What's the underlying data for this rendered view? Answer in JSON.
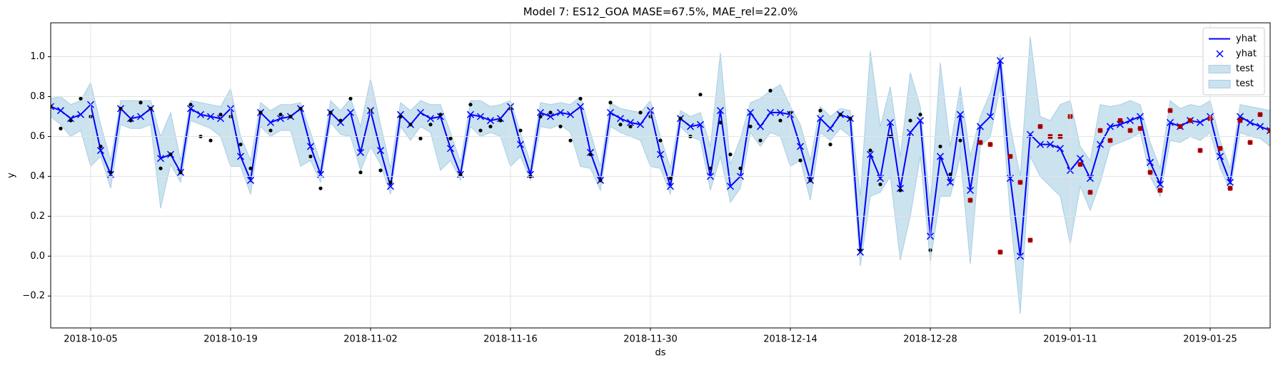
{
  "chart_data": {
    "type": "line",
    "title": "Model 7: ES12_GOA MASE=67.5%, MAE_rel=22.0%",
    "x_label": "ds",
    "y_label": "y",
    "x": [
      "2018-10-01",
      "2018-10-02",
      "2018-10-03",
      "2018-10-04",
      "2018-10-05",
      "2018-10-06",
      "2018-10-07",
      "2018-10-08",
      "2018-10-09",
      "2018-10-10",
      "2018-10-11",
      "2018-10-12",
      "2018-10-13",
      "2018-10-14",
      "2018-10-15",
      "2018-10-16",
      "2018-10-17",
      "2018-10-18",
      "2018-10-19",
      "2018-10-20",
      "2018-10-21",
      "2018-10-22",
      "2018-10-23",
      "2018-10-24",
      "2018-10-25",
      "2018-10-26",
      "2018-10-27",
      "2018-10-28",
      "2018-10-29",
      "2018-10-30",
      "2018-10-31",
      "2018-11-01",
      "2018-11-02",
      "2018-11-03",
      "2018-11-04",
      "2018-11-05",
      "2018-11-06",
      "2018-11-07",
      "2018-11-08",
      "2018-11-09",
      "2018-11-10",
      "2018-11-11",
      "2018-11-12",
      "2018-11-13",
      "2018-11-14",
      "2018-11-15",
      "2018-11-16",
      "2018-11-17",
      "2018-11-18",
      "2018-11-19",
      "2018-11-20",
      "2018-11-21",
      "2018-11-22",
      "2018-11-23",
      "2018-11-24",
      "2018-11-25",
      "2018-11-26",
      "2018-11-27",
      "2018-11-28",
      "2018-11-29",
      "2018-11-30",
      "2018-12-01",
      "2018-12-02",
      "2018-12-03",
      "2018-12-04",
      "2018-12-05",
      "2018-12-06",
      "2018-12-07",
      "2018-12-08",
      "2018-12-09",
      "2018-12-10",
      "2018-12-11",
      "2018-12-12",
      "2018-12-13",
      "2018-12-14",
      "2018-12-15",
      "2018-12-16",
      "2018-12-17",
      "2018-12-18",
      "2018-12-19",
      "2018-12-20",
      "2018-12-21",
      "2018-12-22",
      "2018-12-23",
      "2018-12-24",
      "2018-12-25",
      "2018-12-26",
      "2018-12-27",
      "2018-12-28",
      "2018-12-29",
      "2018-12-30",
      "2018-12-31",
      "2019-01-01",
      "2019-01-02",
      "2019-01-03",
      "2019-01-04",
      "2019-01-05",
      "2019-01-06",
      "2019-01-07",
      "2019-01-08",
      "2019-01-09",
      "2019-01-10",
      "2019-01-11",
      "2019-01-12",
      "2019-01-13",
      "2019-01-14",
      "2019-01-15",
      "2019-01-16",
      "2019-01-17",
      "2019-01-18",
      "2019-01-19",
      "2019-01-20",
      "2019-01-21",
      "2019-01-22",
      "2019-01-23",
      "2019-01-24",
      "2019-01-25",
      "2019-01-26",
      "2019-01-27",
      "2019-01-28",
      "2019-01-29",
      "2019-01-30",
      "2019-01-31"
    ],
    "xlim": [
      "2018-10-01",
      "2019-01-31"
    ],
    "xticks": [
      "2018-10-05",
      "2018-10-19",
      "2018-11-02",
      "2018-11-16",
      "2018-11-30",
      "2018-12-14",
      "2018-12-28",
      "2019-01-11",
      "2019-01-25"
    ],
    "ylim": [
      -0.36,
      1.17
    ],
    "yticks": [
      {
        "value": -0.2,
        "label": "−0.2"
      },
      {
        "value": 0,
        "label": "0.0"
      },
      0.2,
      0.4,
      0.6,
      0.8,
      {
        "value": 1,
        "label": "1.0"
      }
    ],
    "grid": true,
    "legend": "upper right",
    "series": [
      {
        "name": "yhat",
        "kind": "line",
        "color": "#0000ff",
        "values": [
          0.75,
          0.73,
          0.69,
          0.71,
          0.76,
          0.53,
          0.41,
          0.74,
          0.69,
          0.7,
          0.74,
          0.49,
          0.51,
          0.42,
          0.74,
          0.71,
          0.7,
          0.69,
          0.74,
          0.5,
          0.38,
          0.72,
          0.67,
          0.69,
          0.7,
          0.74,
          0.55,
          0.41,
          0.72,
          0.67,
          0.72,
          0.52,
          0.73,
          0.53,
          0.35,
          0.71,
          0.66,
          0.72,
          0.69,
          0.7,
          0.54,
          0.41,
          0.71,
          0.7,
          0.68,
          0.69,
          0.75,
          0.56,
          0.41,
          0.72,
          0.7,
          0.72,
          0.71,
          0.75,
          0.52,
          0.38,
          0.72,
          0.69,
          0.67,
          0.66,
          0.73,
          0.51,
          0.35,
          0.69,
          0.65,
          0.66,
          0.4,
          0.73,
          0.35,
          0.4,
          0.72,
          0.65,
          0.72,
          0.72,
          0.71,
          0.55,
          0.38,
          0.69,
          0.64,
          0.71,
          0.69,
          0.02,
          0.51,
          0.39,
          0.67,
          0.34,
          0.62,
          0.68,
          0.1,
          0.5,
          0.37,
          0.71,
          0.33,
          0.65,
          0.7,
          0.98,
          0.39,
          0.0,
          0.61,
          0.56,
          0.56,
          0.54,
          0.43,
          0.49,
          0.39,
          0.56,
          0.65,
          0.66,
          0.68,
          0.7,
          0.47,
          0.36,
          0.67,
          0.65,
          0.68,
          0.67,
          0.7,
          0.5,
          0.37,
          0.7,
          0.67,
          0.65,
          0.63
        ]
      },
      {
        "name": "yhat",
        "kind": "marker",
        "color": "#0000ff",
        "values": [
          0.75,
          0.73,
          0.69,
          0.71,
          0.76,
          0.53,
          0.41,
          0.74,
          0.69,
          0.7,
          0.74,
          0.49,
          0.51,
          0.42,
          0.74,
          0.71,
          0.7,
          0.69,
          0.74,
          0.5,
          0.38,
          0.72,
          0.67,
          0.69,
          0.7,
          0.74,
          0.55,
          0.41,
          0.72,
          0.67,
          0.72,
          0.52,
          0.73,
          0.53,
          0.35,
          0.71,
          0.66,
          0.72,
          0.69,
          0.7,
          0.54,
          0.41,
          0.71,
          0.7,
          0.68,
          0.69,
          0.75,
          0.56,
          0.41,
          0.72,
          0.7,
          0.72,
          0.71,
          0.75,
          0.52,
          0.38,
          0.72,
          0.69,
          0.67,
          0.66,
          0.73,
          0.51,
          0.35,
          0.69,
          0.65,
          0.66,
          0.4,
          0.73,
          0.35,
          0.4,
          0.72,
          0.65,
          0.72,
          0.72,
          0.71,
          0.55,
          0.38,
          0.69,
          0.64,
          0.71,
          0.69,
          0.02,
          0.51,
          0.39,
          0.67,
          0.34,
          0.62,
          0.68,
          0.1,
          0.5,
          0.37,
          0.71,
          0.33,
          0.65,
          0.7,
          0.98,
          0.39,
          0.0,
          0.61,
          0.56,
          0.56,
          0.54,
          0.43,
          0.49,
          0.39,
          0.56,
          0.65,
          0.66,
          0.68,
          0.7,
          0.47,
          0.36,
          0.67,
          0.65,
          0.68,
          0.67,
          0.7,
          0.5,
          0.37,
          0.7,
          0.67,
          0.65,
          0.63
        ]
      },
      {
        "name": "test",
        "kind": "band",
        "color": "#a9cfe4",
        "upper": [
          0.79,
          0.8,
          0.76,
          0.78,
          0.87,
          0.66,
          0.48,
          0.78,
          0.78,
          0.78,
          0.78,
          0.6,
          0.72,
          0.48,
          0.78,
          0.77,
          0.76,
          0.75,
          0.84,
          0.6,
          0.48,
          0.77,
          0.73,
          0.76,
          0.76,
          0.77,
          0.62,
          0.47,
          0.78,
          0.73,
          0.79,
          0.65,
          0.89,
          0.66,
          0.44,
          0.77,
          0.73,
          0.78,
          0.76,
          0.76,
          0.62,
          0.47,
          0.78,
          0.78,
          0.75,
          0.76,
          0.78,
          0.62,
          0.47,
          0.77,
          0.76,
          0.77,
          0.76,
          0.8,
          0.62,
          0.45,
          0.77,
          0.74,
          0.73,
          0.72,
          0.78,
          0.6,
          0.44,
          0.73,
          0.7,
          0.72,
          0.55,
          1.02,
          0.46,
          0.59,
          0.77,
          0.79,
          0.83,
          0.86,
          0.75,
          0.66,
          0.48,
          0.75,
          0.7,
          0.74,
          0.73,
          0.3,
          1.03,
          0.65,
          0.85,
          0.5,
          0.92,
          0.75,
          0.25,
          0.97,
          0.55,
          0.85,
          null,
          null,
          null,
          null,
          null,
          null,
          null,
          null,
          null,
          null,
          null,
          null,
          null,
          null,
          null,
          null,
          null,
          null,
          null,
          null,
          null,
          null,
          null,
          null,
          null,
          null,
          null,
          null,
          null,
          null,
          null
        ],
        "lower": [
          0.7,
          0.66,
          0.6,
          0.63,
          0.45,
          0.5,
          0.34,
          0.66,
          0.64,
          0.64,
          0.66,
          0.24,
          0.46,
          0.37,
          0.68,
          0.66,
          0.64,
          0.6,
          0.45,
          0.45,
          0.31,
          0.65,
          0.6,
          0.63,
          0.63,
          0.45,
          0.48,
          0.37,
          0.67,
          0.61,
          0.6,
          0.43,
          0.55,
          0.46,
          0.31,
          0.65,
          0.58,
          0.65,
          0.62,
          0.43,
          0.48,
          0.38,
          0.65,
          0.6,
          0.62,
          0.6,
          0.45,
          0.5,
          0.38,
          0.65,
          0.64,
          0.66,
          0.62,
          0.45,
          0.44,
          0.33,
          0.65,
          0.62,
          0.6,
          0.58,
          0.45,
          0.44,
          0.31,
          0.65,
          0.6,
          0.58,
          0.33,
          0.5,
          0.27,
          0.34,
          0.62,
          0.55,
          0.62,
          0.6,
          0.45,
          0.48,
          0.28,
          0.62,
          0.58,
          0.64,
          0.6,
          -0.05,
          0.3,
          0.32,
          0.4,
          -0.02,
          0.2,
          0.5,
          -0.03,
          0.3,
          0.3,
          0.5,
          null,
          null,
          null,
          null,
          null,
          null,
          null,
          null,
          null,
          null,
          null,
          null,
          null,
          null,
          null,
          null,
          null,
          null,
          null,
          null,
          null,
          null,
          null,
          null,
          null,
          null,
          null,
          null,
          null,
          null,
          null
        ]
      },
      {
        "name": "test",
        "kind": "band",
        "color": "#a9cfe4",
        "upper": [
          null,
          null,
          null,
          null,
          null,
          null,
          null,
          null,
          null,
          null,
          null,
          null,
          null,
          null,
          null,
          null,
          null,
          null,
          null,
          null,
          null,
          null,
          null,
          null,
          null,
          null,
          null,
          null,
          null,
          null,
          null,
          null,
          null,
          null,
          null,
          null,
          null,
          null,
          null,
          null,
          null,
          null,
          null,
          null,
          null,
          null,
          null,
          null,
          null,
          null,
          null,
          null,
          null,
          null,
          null,
          null,
          null,
          null,
          null,
          null,
          null,
          null,
          null,
          null,
          null,
          null,
          null,
          null,
          null,
          null,
          null,
          null,
          null,
          null,
          null,
          null,
          null,
          null,
          null,
          null,
          null,
          null,
          null,
          null,
          null,
          null,
          null,
          null,
          null,
          null,
          null,
          0.85,
          0.5,
          0.7,
          0.82,
          1.01,
          0.65,
          0.4,
          1.1,
          0.7,
          0.68,
          0.76,
          0.78,
          0.55,
          0.48,
          0.76,
          0.75,
          0.76,
          0.78,
          0.76,
          0.57,
          0.44,
          0.78,
          0.74,
          0.76,
          0.75,
          0.78,
          0.58,
          0.44,
          0.76,
          0.75,
          0.74,
          0.73
        ],
        "lower": [
          null,
          null,
          null,
          null,
          null,
          null,
          null,
          null,
          null,
          null,
          null,
          null,
          null,
          null,
          null,
          null,
          null,
          null,
          null,
          null,
          null,
          null,
          null,
          null,
          null,
          null,
          null,
          null,
          null,
          null,
          null,
          null,
          null,
          null,
          null,
          null,
          null,
          null,
          null,
          null,
          null,
          null,
          null,
          null,
          null,
          null,
          null,
          null,
          null,
          null,
          null,
          null,
          null,
          null,
          null,
          null,
          null,
          null,
          null,
          null,
          null,
          null,
          null,
          null,
          null,
          null,
          null,
          null,
          null,
          null,
          null,
          null,
          null,
          null,
          null,
          null,
          null,
          null,
          null,
          null,
          null,
          null,
          null,
          null,
          null,
          null,
          null,
          null,
          null,
          null,
          null,
          0.5,
          -0.04,
          0.55,
          0.6,
          0.85,
          0.2,
          -0.29,
          0.5,
          0.4,
          0.35,
          0.3,
          0.06,
          0.35,
          0.23,
          0.37,
          0.55,
          0.57,
          0.59,
          0.62,
          0.4,
          0.3,
          0.58,
          0.57,
          0.6,
          0.58,
          0.62,
          0.44,
          0.33,
          0.62,
          0.6,
          0.59,
          0.55
        ]
      }
    ],
    "points": [
      {
        "color": "#000000",
        "marker": "dot",
        "values": [
          0.75,
          0.64,
          0.68,
          0.79,
          0.7,
          0.55,
          0.42,
          0.74,
          0.68,
          0.77,
          0.74,
          0.44,
          0.51,
          0.42,
          0.76,
          0.6,
          0.58,
          0.71,
          0.7,
          0.56,
          0.44,
          0.72,
          0.63,
          0.71,
          0.7,
          0.74,
          0.5,
          0.34,
          0.72,
          0.68,
          0.79,
          0.42,
          0.73,
          0.43,
          0.37,
          0.7,
          0.66,
          0.59,
          0.66,
          0.71,
          0.59,
          0.41,
          0.76,
          0.63,
          0.65,
          0.68,
          0.74,
          0.63,
          0.4,
          0.7,
          0.72,
          0.65,
          0.58,
          0.79,
          0.51,
          0.38,
          0.77,
          0.66,
          0.65,
          0.72,
          0.7,
          0.58,
          0.39,
          0.69,
          0.6,
          0.81,
          0.44,
          0.67,
          0.51,
          0.44,
          0.65,
          0.58,
          0.83,
          0.68,
          0.72,
          0.48,
          0.38,
          0.73,
          0.56,
          0.71,
          0.69,
          0.03,
          0.53,
          0.36,
          0.6,
          0.33,
          0.68,
          0.71,
          0.03,
          0.55,
          0.41,
          0.58,
          null,
          null,
          null,
          null,
          null,
          null,
          null,
          null,
          null,
          null,
          null,
          null,
          null,
          null,
          null,
          null,
          null,
          null,
          null,
          null,
          null,
          null,
          null,
          null,
          null,
          null,
          null,
          null,
          null,
          null,
          null
        ]
      },
      {
        "color": "#dd0000",
        "edge_color": "#700000",
        "marker": "dot-x",
        "values": [
          null,
          null,
          null,
          null,
          null,
          null,
          null,
          null,
          null,
          null,
          null,
          null,
          null,
          null,
          null,
          null,
          null,
          null,
          null,
          null,
          null,
          null,
          null,
          null,
          null,
          null,
          null,
          null,
          null,
          null,
          null,
          null,
          null,
          null,
          null,
          null,
          null,
          null,
          null,
          null,
          null,
          null,
          null,
          null,
          null,
          null,
          null,
          null,
          null,
          null,
          null,
          null,
          null,
          null,
          null,
          null,
          null,
          null,
          null,
          null,
          null,
          null,
          null,
          null,
          null,
          null,
          null,
          null,
          null,
          null,
          null,
          null,
          null,
          null,
          null,
          null,
          null,
          null,
          null,
          null,
          null,
          null,
          null,
          null,
          null,
          null,
          null,
          null,
          null,
          null,
          null,
          null,
          0.28,
          0.57,
          0.56,
          0.02,
          0.5,
          0.37,
          0.08,
          0.65,
          0.6,
          0.6,
          0.7,
          0.46,
          0.32,
          0.63,
          0.58,
          0.68,
          0.63,
          0.64,
          0.42,
          0.33,
          0.73,
          0.65,
          0.68,
          0.53,
          0.69,
          0.54,
          0.34,
          0.68,
          0.57,
          0.71,
          0.63
        ]
      }
    ]
  }
}
